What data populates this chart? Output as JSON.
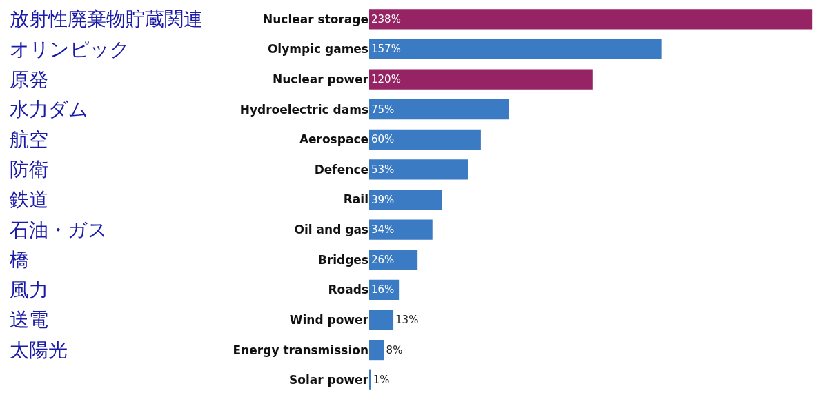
{
  "chart_data": {
    "type": "bar",
    "orientation": "horizontal",
    "categories": [
      "Nuclear storage",
      "Olympic games",
      "Nuclear power",
      "Hydroelectric dams",
      "Aerospace",
      "Defence",
      "Rail",
      "Oil and gas",
      "Bridges",
      "Roads",
      "Wind power",
      "Energy transmission",
      "Solar power"
    ],
    "values": [
      238,
      157,
      120,
      75,
      60,
      53,
      39,
      34,
      26,
      16,
      13,
      8,
      1
    ],
    "value_labels": [
      "238%",
      "157%",
      "120%",
      "75%",
      "60%",
      "53%",
      "39%",
      "34%",
      "26%",
      "16%",
      "13%",
      "8%",
      "1%"
    ],
    "colors": [
      "#962464",
      "#3a7bc4",
      "#962464",
      "#3a7bc4",
      "#3a7bc4",
      "#3a7bc4",
      "#3a7bc4",
      "#3a7bc4",
      "#3a7bc4",
      "#3a7bc4",
      "#3a7bc4",
      "#3a7bc4",
      "#3a7bc4"
    ],
    "annotations": [
      "放射性廃棄物貯蔵関連",
      "オリンピック",
      "原発",
      "水力ダム",
      "航空",
      "防衛",
      "鉄道",
      "石油・ガス",
      "橋",
      "風力",
      "送電",
      "太陽光"
    ]
  }
}
